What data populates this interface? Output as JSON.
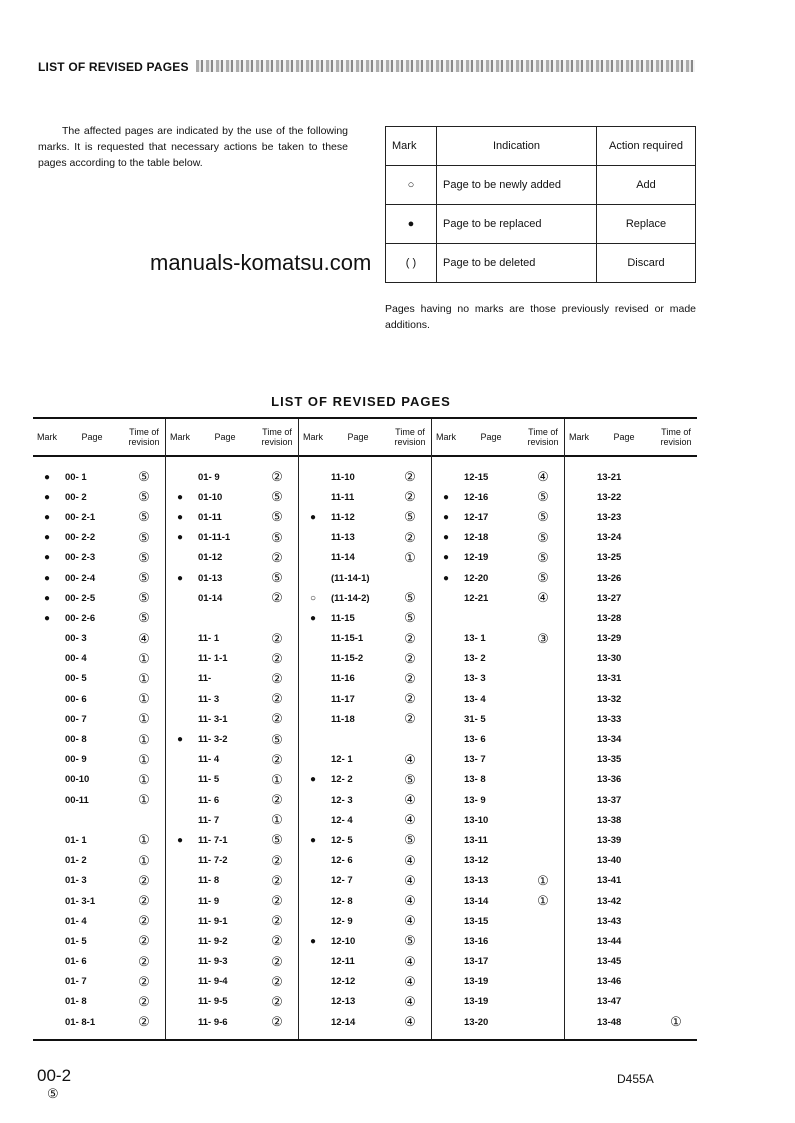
{
  "header": {
    "title": "LIST OF REVISED PAGES"
  },
  "intro": "The affected pages are indicated by the use of the following marks. It is requested that necessary actions be taken to these pages according to the table below.",
  "mark_table": {
    "headers": [
      "Mark",
      "Indication",
      "Action required"
    ],
    "rows": [
      {
        "mark": "○",
        "indication": "Page to be newly added",
        "action": "Add"
      },
      {
        "mark": "●",
        "indication": "Page to be replaced",
        "action": "Replace"
      },
      {
        "mark": "( )",
        "indication": "Page to be deleted",
        "action": "Discard"
      }
    ]
  },
  "note": "Pages having no marks are those previously revised or made additions.",
  "watermark": "manuals-komatsu.com",
  "list_title": "LIST OF REVISED PAGES",
  "column_headers": {
    "mark": "Mark",
    "page": "Page",
    "rev": "Time of revision"
  },
  "groups": [
    [
      [
        "●",
        "00- 1",
        "⑤"
      ],
      [
        "●",
        "00- 2",
        "⑤"
      ],
      [
        "●",
        "00- 2-1",
        "⑤"
      ],
      [
        "●",
        "00- 2-2",
        "⑤"
      ],
      [
        "●",
        "00- 2-3",
        "⑤"
      ],
      [
        "●",
        "00- 2-4",
        "⑤"
      ],
      [
        "●",
        "00- 2-5",
        "⑤"
      ],
      [
        "●",
        "00- 2-6",
        "⑤"
      ],
      [
        "",
        "00- 3",
        "④"
      ],
      [
        "",
        "00- 4",
        "①"
      ],
      [
        "",
        "00- 5",
        "①"
      ],
      [
        "",
        "00- 6",
        "①"
      ],
      [
        "",
        "00- 7",
        "①"
      ],
      [
        "",
        "00- 8",
        "①"
      ],
      [
        "",
        "00- 9",
        "①"
      ],
      [
        "",
        "00-10",
        "①"
      ],
      [
        "",
        "00-11",
        "①"
      ],
      [
        "",
        "",
        ""
      ],
      [
        "",
        "01- 1",
        "①"
      ],
      [
        "",
        "01- 2",
        "①"
      ],
      [
        "",
        "01- 3",
        "②"
      ],
      [
        "",
        "01- 3-1",
        "②"
      ],
      [
        "",
        "01- 4",
        "②"
      ],
      [
        "",
        "01- 5",
        "②"
      ],
      [
        "",
        "01- 6",
        "②"
      ],
      [
        "",
        "01- 7",
        "②"
      ],
      [
        "",
        "01- 8",
        "②"
      ],
      [
        "",
        "01- 8-1",
        "②"
      ]
    ],
    [
      [
        "",
        "01- 9",
        "②"
      ],
      [
        "●",
        "01-10",
        "⑤"
      ],
      [
        "●",
        "01-11",
        "⑤"
      ],
      [
        "●",
        "01-11-1",
        "⑤"
      ],
      [
        "",
        "01-12",
        "②"
      ],
      [
        "●",
        "01-13",
        "⑤"
      ],
      [
        "",
        "01-14",
        "②"
      ],
      [
        "",
        "",
        ""
      ],
      [
        "",
        "11- 1",
        "②"
      ],
      [
        "",
        "11- 1-1",
        "②"
      ],
      [
        "",
        "11-",
        "②"
      ],
      [
        "",
        "11- 3",
        "②"
      ],
      [
        "",
        "11- 3-1",
        "②"
      ],
      [
        "●",
        "11- 3-2",
        "⑤"
      ],
      [
        "",
        "11- 4",
        "②"
      ],
      [
        "",
        "11- 5",
        "①"
      ],
      [
        "",
        "11- 6",
        "②"
      ],
      [
        "",
        "11- 7",
        "①"
      ],
      [
        "●",
        "11- 7-1",
        "⑤"
      ],
      [
        "",
        "11- 7-2",
        "②"
      ],
      [
        "",
        "11- 8",
        "②"
      ],
      [
        "",
        "11- 9",
        "②"
      ],
      [
        "",
        "11- 9-1",
        "②"
      ],
      [
        "",
        "11- 9-2",
        "②"
      ],
      [
        "",
        "11- 9-3",
        "②"
      ],
      [
        "",
        "11- 9-4",
        "②"
      ],
      [
        "",
        "11- 9-5",
        "②"
      ],
      [
        "",
        "11- 9-6",
        "②"
      ]
    ],
    [
      [
        "",
        "11-10",
        "②"
      ],
      [
        "",
        "11-11",
        "②"
      ],
      [
        "●",
        "11-12",
        "⑤"
      ],
      [
        "",
        "11-13",
        "②"
      ],
      [
        "",
        "11-14",
        "①"
      ],
      [
        "",
        "(11-14-1)",
        ""
      ],
      [
        "○",
        "(11-14-2)",
        "⑤"
      ],
      [
        "●",
        "11-15",
        "⑤"
      ],
      [
        "",
        "11-15-1",
        "②"
      ],
      [
        "",
        "11-15-2",
        "②"
      ],
      [
        "",
        "11-16",
        "②"
      ],
      [
        "",
        "11-17",
        "②"
      ],
      [
        "",
        "11-18",
        "②"
      ],
      [
        "",
        "",
        ""
      ],
      [
        "",
        "12- 1",
        "④"
      ],
      [
        "●",
        "12- 2",
        "⑤"
      ],
      [
        "",
        "12- 3",
        "④"
      ],
      [
        "",
        "12- 4",
        "④"
      ],
      [
        "●",
        "12- 5",
        "⑤"
      ],
      [
        "",
        "12- 6",
        "④"
      ],
      [
        "",
        "12- 7",
        "④"
      ],
      [
        "",
        "12- 8",
        "④"
      ],
      [
        "",
        "12- 9",
        "④"
      ],
      [
        "●",
        "12-10",
        "⑤"
      ],
      [
        "",
        "12-11",
        "④"
      ],
      [
        "",
        "12-12",
        "④"
      ],
      [
        "",
        "12-13",
        "④"
      ],
      [
        "",
        "12-14",
        "④"
      ]
    ],
    [
      [
        "",
        "12-15",
        "④"
      ],
      [
        "●",
        "12-16",
        "⑤"
      ],
      [
        "●",
        "12-17",
        "⑤"
      ],
      [
        "●",
        "12-18",
        "⑤"
      ],
      [
        "●",
        "12-19",
        "⑤"
      ],
      [
        "●",
        "12-20",
        "⑤"
      ],
      [
        "",
        "12-21",
        "④"
      ],
      [
        "",
        "",
        ""
      ],
      [
        "",
        "13- 1",
        "③"
      ],
      [
        "",
        "13- 2",
        ""
      ],
      [
        "",
        "13- 3",
        ""
      ],
      [
        "",
        "13- 4",
        ""
      ],
      [
        "",
        "31- 5",
        ""
      ],
      [
        "",
        "13- 6",
        ""
      ],
      [
        "",
        "13- 7",
        ""
      ],
      [
        "",
        "13- 8",
        ""
      ],
      [
        "",
        "13- 9",
        ""
      ],
      [
        "",
        "13-10",
        ""
      ],
      [
        "",
        "13-11",
        ""
      ],
      [
        "",
        "13-12",
        ""
      ],
      [
        "",
        "13-13",
        "①"
      ],
      [
        "",
        "13-14",
        "①"
      ],
      [
        "",
        "13-15",
        ""
      ],
      [
        "",
        "13-16",
        ""
      ],
      [
        "",
        "13-17",
        ""
      ],
      [
        "",
        "13-19",
        ""
      ],
      [
        "",
        "13-19",
        ""
      ],
      [
        "",
        "13-20",
        ""
      ]
    ],
    [
      [
        "",
        "13-21",
        ""
      ],
      [
        "",
        "13-22",
        ""
      ],
      [
        "",
        "13-23",
        ""
      ],
      [
        "",
        "13-24",
        ""
      ],
      [
        "",
        "13-25",
        ""
      ],
      [
        "",
        "13-26",
        ""
      ],
      [
        "",
        "13-27",
        ""
      ],
      [
        "",
        "13-28",
        ""
      ],
      [
        "",
        "13-29",
        ""
      ],
      [
        "",
        "13-30",
        ""
      ],
      [
        "",
        "13-31",
        ""
      ],
      [
        "",
        "13-32",
        ""
      ],
      [
        "",
        "13-33",
        ""
      ],
      [
        "",
        "13-34",
        ""
      ],
      [
        "",
        "13-35",
        ""
      ],
      [
        "",
        "13-36",
        ""
      ],
      [
        "",
        "13-37",
        ""
      ],
      [
        "",
        "13-38",
        ""
      ],
      [
        "",
        "13-39",
        ""
      ],
      [
        "",
        "13-40",
        ""
      ],
      [
        "",
        "13-41",
        ""
      ],
      [
        "",
        "13-42",
        ""
      ],
      [
        "",
        "13-43",
        ""
      ],
      [
        "",
        "13-44",
        ""
      ],
      [
        "",
        "13-45",
        ""
      ],
      [
        "",
        "13-46",
        ""
      ],
      [
        "",
        "13-47",
        ""
      ],
      [
        "",
        "13-48",
        "①"
      ]
    ]
  ],
  "footer": {
    "page": "00-2",
    "revision": "⑤",
    "model": "D455A"
  }
}
